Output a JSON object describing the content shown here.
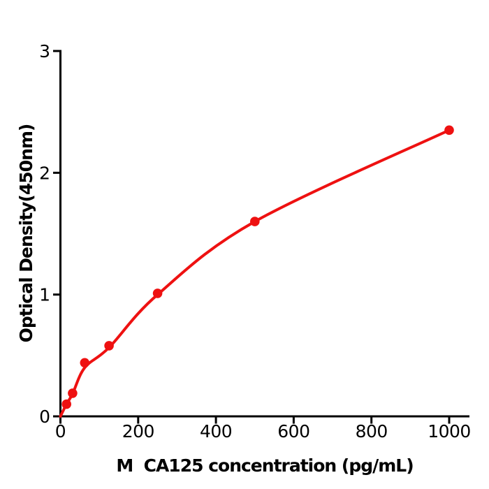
{
  "figure": {
    "background_color": "#ffffff",
    "axis_color": "#000000",
    "accent_color": "#ee1111"
  },
  "chart_data": {
    "type": "scatter",
    "title": "",
    "xlabel": "M  CA125 concentration (pg/mL)",
    "ylabel": "Optical Density(450nm)",
    "x_ticks": [
      0,
      200,
      400,
      600,
      800,
      1000
    ],
    "y_ticks": [
      0,
      1,
      2,
      3
    ],
    "xlim": [
      0,
      1052
    ],
    "ylim": [
      0,
      3.0
    ],
    "grid": false,
    "legend": "none",
    "series": [
      {
        "name": "standard-points",
        "type": "scatter",
        "color": "#ee1111",
        "points": [
          [
            15.6,
            0.1
          ],
          [
            31.2,
            0.19
          ],
          [
            62.5,
            0.44
          ],
          [
            125,
            0.58
          ],
          [
            250,
            1.01
          ],
          [
            500,
            1.6
          ],
          [
            1000,
            2.35
          ]
        ]
      },
      {
        "name": "fit-curve",
        "type": "line",
        "color": "#ee1111",
        "points": [
          [
            0,
            0.0
          ],
          [
            15.6,
            0.1
          ],
          [
            31.2,
            0.185
          ],
          [
            62.5,
            0.4
          ],
          [
            125,
            0.565
          ],
          [
            250,
            1.0
          ],
          [
            500,
            1.6
          ],
          [
            1000,
            2.35
          ]
        ]
      }
    ]
  }
}
